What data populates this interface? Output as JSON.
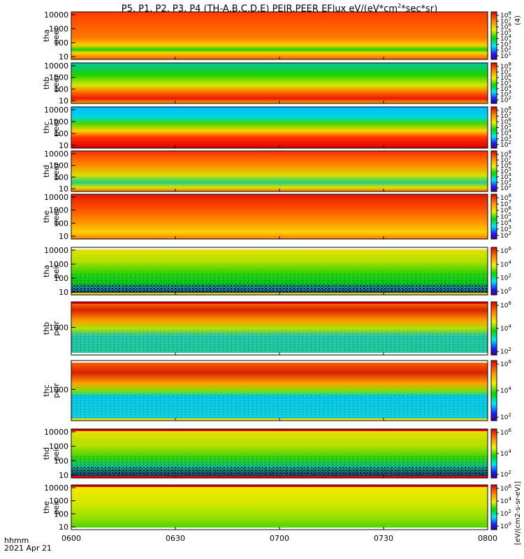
{
  "chart_data": {
    "type": "heatmap",
    "title_prefix": "P5, P1, P2, P3, P4 (TH-A,B,C,D,E) PEIR,PEER EFlux eV/(eV*cm",
    "title_exp": "2",
    "title_suffix": "*sec*sr)",
    "x_tick_labels": [
      "0600",
      "0630",
      "0700",
      "0730",
      "0800"
    ],
    "x_unit_label": "hhmm",
    "date_label": "2021 Apr 21",
    "colorbar_unit": "[eV/(cm2-s-sr-eV)]",
    "colorbar_title": "(4)",
    "panels": [
      {
        "label1": "tha",
        "label2": "peer",
        "yticks": [
          "10000",
          "1000",
          "100",
          "10"
        ],
        "cticks": [
          "10^8",
          "10^7",
          "10^6",
          "10^5",
          "10^4",
          "10^3",
          "10^2",
          "10^1"
        ]
      },
      {
        "label1": "thb",
        "label2": "peer",
        "yticks": [
          "10000",
          "1000",
          "100",
          "10"
        ],
        "cticks": [
          "10^8",
          "10^7",
          "10^6",
          "10^5",
          "10^4",
          "10^3",
          "10^2"
        ]
      },
      {
        "label1": "thc",
        "label2": "peer",
        "yticks": [
          "10000",
          "1000",
          "100",
          "10"
        ],
        "cticks": [
          "10^8",
          "10^7",
          "10^6",
          "10^5",
          "10^4",
          "10^3",
          "10^2"
        ]
      },
      {
        "label1": "thd",
        "label2": "peer",
        "yticks": [
          "10000",
          "1000",
          "100",
          "10"
        ],
        "cticks": [
          "10^8",
          "10^7",
          "10^6",
          "10^5",
          "10^4",
          "10^3",
          "10^2"
        ]
      },
      {
        "label1": "the",
        "label2": "peer",
        "yticks": [
          "10000",
          "1000",
          "100",
          "10"
        ],
        "cticks": [
          "10^8",
          "10^7",
          "10^6",
          "10^5",
          "10^4",
          "10^3",
          "10^2"
        ]
      },
      {
        "label1": "tha",
        "label2": "peir",
        "yticks": [
          "10000",
          "1000",
          "100",
          "10"
        ],
        "cticks": [
          "10^6",
          "10^4",
          "10^2",
          "10^0"
        ]
      },
      {
        "label1": "thb",
        "label2": "peir",
        "yticks": [
          "1000"
        ],
        "cticks": [
          "10^6",
          "10^4",
          "10^2"
        ]
      },
      {
        "label1": "thc",
        "label2": "peir",
        "yticks": [
          "1000"
        ],
        "cticks": [
          "10^6",
          "10^4",
          "10^2"
        ]
      },
      {
        "label1": "thd",
        "label2": "peir",
        "yticks": [
          "10000",
          "1000",
          "100",
          "10"
        ],
        "cticks": [
          "10^6",
          "10^4",
          "10^2"
        ]
      },
      {
        "label1": "the",
        "label2": "peir",
        "yticks": [
          "10000",
          "1000",
          "100",
          "10"
        ],
        "cticks": [
          "10^6",
          "10^4",
          "10^2",
          "10^0"
        ]
      }
    ]
  }
}
